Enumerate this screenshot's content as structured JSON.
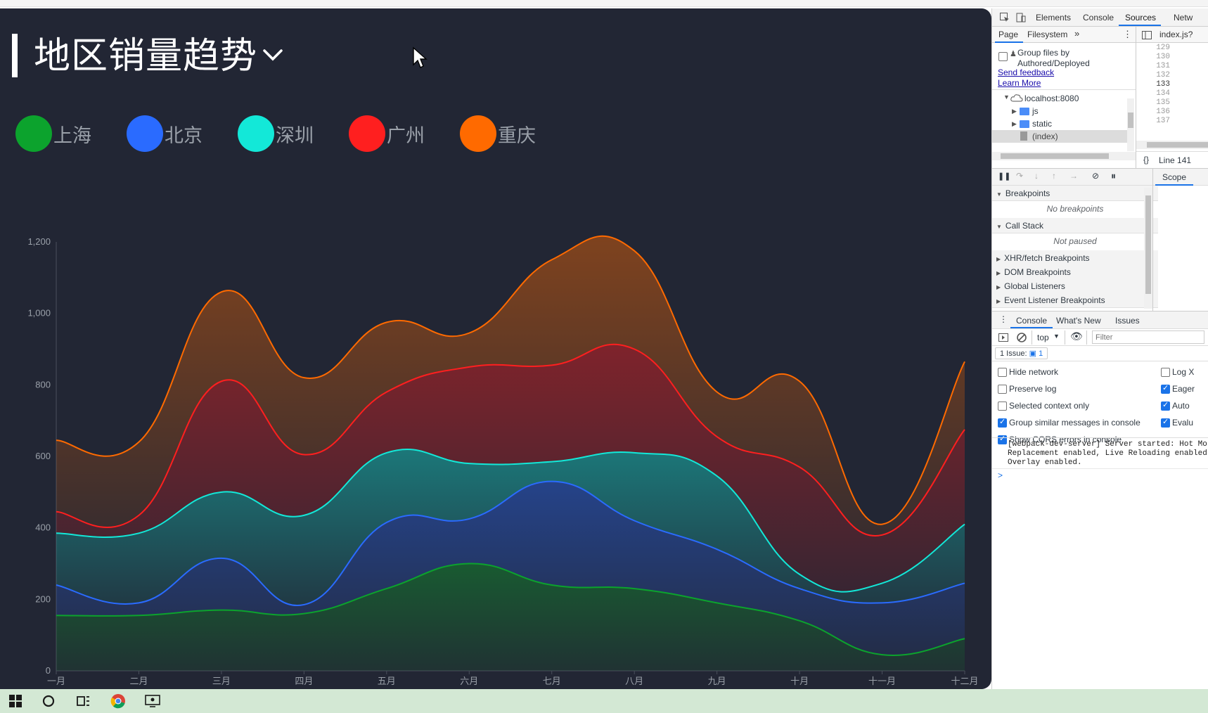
{
  "dashboard": {
    "title": "地区销量趋势",
    "legend": [
      {
        "label": "上海",
        "color": "#0ca32d"
      },
      {
        "label": "北京",
        "color": "#2a6bff"
      },
      {
        "label": "深圳",
        "color": "#13e8d8"
      },
      {
        "label": "广州",
        "color": "#ff1f1f"
      },
      {
        "label": "重庆",
        "color": "#ff6a00"
      }
    ]
  },
  "chart_data": {
    "type": "area",
    "stacked": true,
    "smooth": true,
    "title": "地区销量趋势",
    "categories": [
      "一月",
      "二月",
      "三月",
      "四月",
      "五月",
      "六月",
      "七月",
      "八月",
      "九月",
      "十月",
      "十一月",
      "十二月"
    ],
    "y_ticks": [
      "0",
      "200",
      "400",
      "600",
      "800",
      "1,000",
      "1,200"
    ],
    "ylim": [
      0,
      1200
    ],
    "grid": false,
    "series": [
      {
        "name": "上海",
        "color": "#0ca32d",
        "values": [
          155,
          155,
          170,
          160,
          230,
          300,
          240,
          230,
          190,
          140,
          45,
          90
        ]
      },
      {
        "name": "北京",
        "color": "#2a6bff",
        "values": [
          85,
          35,
          145,
          25,
          185,
          125,
          290,
          190,
          150,
          90,
          145,
          155
        ]
      },
      {
        "name": "深圳",
        "color": "#13e8d8",
        "values": [
          145,
          195,
          185,
          250,
          195,
          155,
          55,
          190,
          205,
          40,
          55,
          165
        ]
      },
      {
        "name": "广州",
        "color": "#ff1f1f",
        "values": [
          60,
          50,
          310,
          170,
          170,
          270,
          270,
          290,
          110,
          300,
          135,
          265
        ]
      },
      {
        "name": "重庆",
        "color": "#ff6a00",
        "values": [
          200,
          205,
          250,
          215,
          195,
          95,
          295,
          275,
          125,
          240,
          30,
          190
        ]
      }
    ]
  },
  "devtools": {
    "tabs": [
      "Elements",
      "Console",
      "Sources",
      "Netw"
    ],
    "active_tab": "Sources",
    "nav_tabs": [
      "Page",
      "Filesystem"
    ],
    "file_tab": "index.js?",
    "group_files_label": "Group files by Authored/Deployed",
    "send_feedback": "Send feedback",
    "learn_more": "Learn More",
    "tree": [
      "localhost:8080",
      "js",
      "static",
      "(index)"
    ],
    "gutter_lines": [
      "129",
      "130",
      "131",
      "132",
      "133",
      "134",
      "135",
      "136",
      "137"
    ],
    "line_info": "Line 141",
    "scope_tab": "Scope",
    "sections": [
      {
        "label": "Breakpoints",
        "open": true
      },
      {
        "label": "Call Stack",
        "open": true
      },
      {
        "label": "XHR/fetch Breakpoints",
        "open": false
      },
      {
        "label": "DOM Breakpoints",
        "open": false
      },
      {
        "label": "Global Listeners",
        "open": false
      },
      {
        "label": "Event Listener Breakpoints",
        "open": false
      }
    ],
    "no_breakpoints": "No breakpoints",
    "not_paused": "Not paused",
    "drawer_tabs": [
      "Console",
      "What's New",
      "Issues"
    ],
    "context": "top",
    "filter_placeholder": "Filter",
    "issues_badge": "1 Issue:",
    "issues_count": "1",
    "settings_left": [
      {
        "label": "Hide network",
        "checked": false
      },
      {
        "label": "Preserve log",
        "checked": false
      },
      {
        "label": "Selected context only",
        "checked": false
      },
      {
        "label": "Group similar messages in console",
        "checked": true
      },
      {
        "label": "Show CORS errors in console",
        "checked": true
      }
    ],
    "settings_right": [
      {
        "label": "Log X",
        "checked": false
      },
      {
        "label": "Eager",
        "checked": true
      },
      {
        "label": "Auto",
        "checked": true
      },
      {
        "label": "Evalu",
        "checked": true
      }
    ],
    "log_lines": [
      "[webpack-dev-server] Server started: Hot Mo",
      "Replacement enabled, Live Reloading enabled",
      "Overlay enabled."
    ],
    "prompt": ">"
  }
}
